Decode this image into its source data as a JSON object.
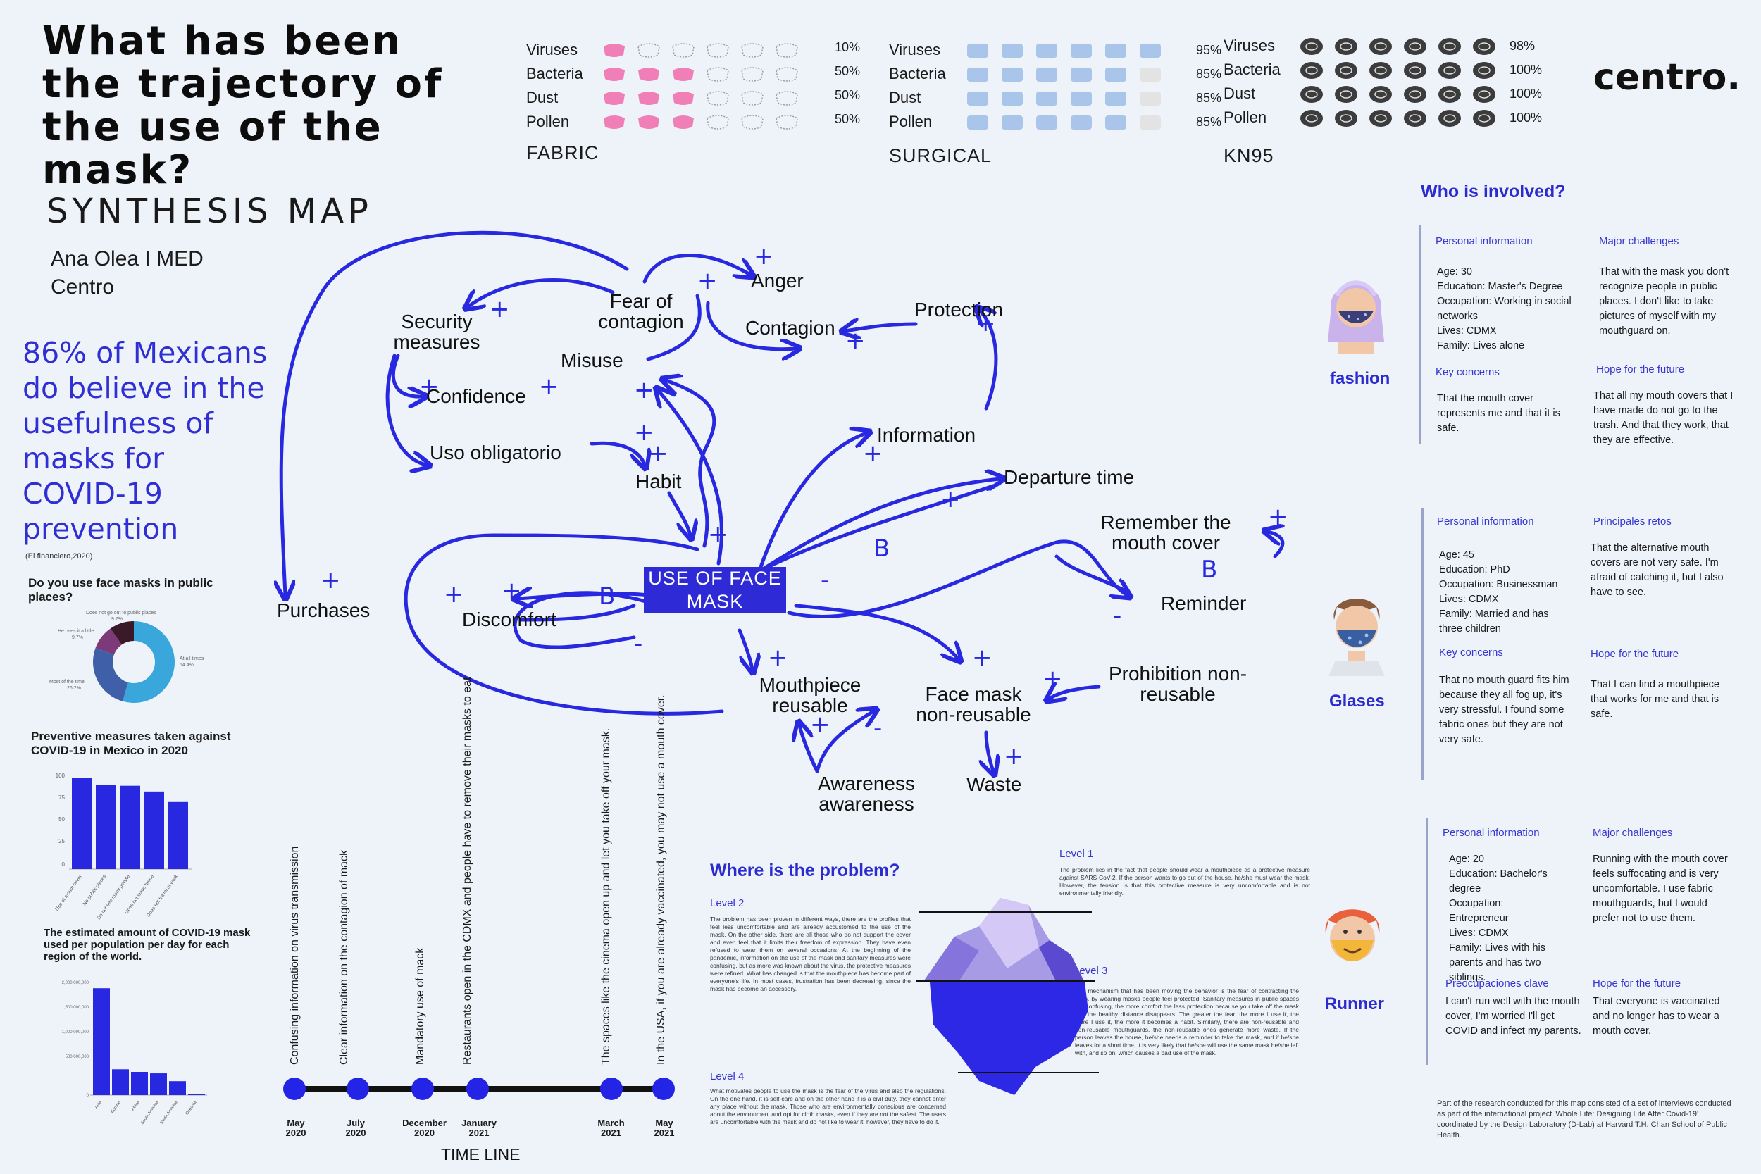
{
  "title": "What has been the trajectory of the use of the mask?",
  "brand": "centro.",
  "synthesis_title": "SYNTHESIS MAP",
  "author": {
    "name": "Ana Olea I MED",
    "org": "Centro"
  },
  "statistic": {
    "text": "86% of Mexicans do believe in the usefulness of masks for COVID-19 prevention",
    "source": "(El financiero,2020)"
  },
  "mask_types": [
    {
      "name": "FABRIC",
      "color": "#f07fb8",
      "rows": [
        {
          "label": "Viruses",
          "pct": "10%",
          "level": 0.1
        },
        {
          "label": "Bacteria",
          "pct": "50%",
          "level": 0.5
        },
        {
          "label": "Dust",
          "pct": "50%",
          "level": 0.5
        },
        {
          "label": "Pollen",
          "pct": "50%",
          "level": 0.5
        }
      ]
    },
    {
      "name": "SURGICAL",
      "color": "#a9c6ea",
      "rows": [
        {
          "label": "Viruses",
          "pct": "95%",
          "level": 0.95
        },
        {
          "label": "Bacteria",
          "pct": "85%",
          "level": 0.85
        },
        {
          "label": "Dust",
          "pct": "85%",
          "level": 0.85
        },
        {
          "label": "Pollen",
          "pct": "85%",
          "level": 0.85
        }
      ]
    },
    {
      "name": "KN95",
      "color": "#3c3c3c",
      "rows": [
        {
          "label": "Viruses",
          "pct": "98%",
          "level": 0.98
        },
        {
          "label": "Bacteria",
          "pct": "100%",
          "level": 1
        },
        {
          "label": "Dust",
          "pct": "100%",
          "level": 1
        },
        {
          "label": "Pollen",
          "pct": "100%",
          "level": 1
        }
      ]
    }
  ],
  "donut": {
    "question": "Do you use face masks in public places?",
    "slices": [
      {
        "label": "At all times",
        "pct": "54.4%",
        "value": 54.4,
        "color": "#39a6dc"
      },
      {
        "label": "Most of the time",
        "pct": "26.2%",
        "value": 26.2,
        "color": "#3f5fa8"
      },
      {
        "label": "He uses it a little",
        "pct": "9.7%",
        "value": 9.7,
        "color": "#7c3a78"
      },
      {
        "label": "Does not go out to public places",
        "pct": "9.7%",
        "value": 9.7,
        "color": "#3a1a28"
      }
    ]
  },
  "chart_data": [
    {
      "type": "bar",
      "title": "Preventive measures taken against COVID-19 in Mexico in 2020",
      "categories": [
        "Use of mouth cover",
        "No public places",
        "Do not see many people",
        "Does not leave home",
        "Does not travel at work"
      ],
      "values": [
        95,
        88,
        87,
        81,
        70
      ],
      "ylim": [
        0,
        100
      ],
      "ytick_labels": [
        "100",
        "75",
        "50",
        "25",
        "0"
      ],
      "color": "#2828e0"
    },
    {
      "type": "bar",
      "title": "The estimated amount of COVID-19 mask used per population per day for each region of the world.",
      "categories": [
        "Asia",
        "Europe",
        "Africa",
        "South America",
        "North America",
        "Oceania"
      ],
      "values": [
        1840000000,
        445000000,
        400000000,
        375000000,
        240000000,
        15000000
      ],
      "ylim": [
        0,
        2000000000
      ],
      "ytick_labels": [
        "2,000,000,000",
        "1,500,000,000",
        "1,000,000,000",
        "500,000,000",
        "0"
      ],
      "color": "#2828e0"
    }
  ],
  "map": {
    "center": "USE OF FACE MASK",
    "nodes": {
      "fear": "Fear of contagion",
      "anger": "Anger",
      "contagion": "Contagion",
      "protection": "Protection",
      "security": "Security measures",
      "misuse": "Misuse",
      "confidence": "Confidence",
      "uso": "Uso obligatorio",
      "habit": "Habit",
      "information": "Information",
      "departure": "Departure time",
      "remember": "Remember the mouth cover",
      "reminder": "Reminder",
      "purchases": "Purchases",
      "discomfort": "Discomfort",
      "mouthpiece": "Mouthpiece reusable",
      "facemask_nr": "Face mask non-reusable",
      "prohibition": "Prohibition non-reusable",
      "awareness": "Awareness awareness",
      "waste": "Waste"
    }
  },
  "who": {
    "title": "Who is involved?",
    "personas": [
      {
        "name": "fashion",
        "left_h": "Personal information",
        "left_t": "Age: 30\nEducation: Master's Degree\nOccupation: Working in social networks\nLives: CDMX\nFamily: Lives alone",
        "right_h": "Major challenges",
        "right_t": "That with the mask you don't recognize people in public places. I don't like to take pictures of myself with my mouthguard on.",
        "left_h2": "Key concerns",
        "left_t2": "That the mouth cover represents me and that it is safe.",
        "right_h2": "Hope for the future",
        "right_t2": "That all my mouth covers that I have made do not go to the trash. And that they work, that they are effective."
      },
      {
        "name": "Glases",
        "left_h": "Personal information",
        "left_t": "Age: 45\nEducation: PhD\nOccupation: Businessman\nLives: CDMX\nFamily: Married and has three children",
        "right_h": "Principales retos",
        "right_t": "That the alternative mouth covers are not very safe. I'm afraid of catching it, but I also have to see.",
        "left_h2": "Key concerns",
        "left_t2": "That no mouth guard fits him because they all fog up, it's very stressful. I found some fabric ones but they are not very safe.",
        "right_h2": "Hope for the future",
        "right_t2": "That I can find a mouthpiece that works for me and that is safe."
      },
      {
        "name": "Runner",
        "left_h": "Personal information",
        "left_t": "Age: 20\nEducation:  Bachelor's degree\nOccupation: Entrepreneur\nLives: CDMX\nFamily: Lives with his parents and has two siblings.",
        "right_h": "Major challenges",
        "right_t": "Running with the mouth cover feels suffocating and is very uncomfortable. I use fabric mouthguards, but I would prefer not to use them.",
        "left_h2": "Preocupaciones clave",
        "left_t2": "I can't run well with the mouth cover, I'm worried I'll get COVID and infect my parents.",
        "right_h2": "Hope for the future",
        "right_t2": "That everyone is vaccinated and no longer has to wear a mouth cover."
      }
    ],
    "footnote": "Part of the research conducted for this map consisted of a set of interviews conducted as part of the international project 'Whole Life: Designing Life After Covid-19' coordinated by the Design Laboratory (D-Lab) at Harvard T.H. Chan School of Public Health."
  },
  "problem": {
    "title": "Where is the problem?",
    "level1_h": "Level 1",
    "level1": "The problem lies in the fact that people should wear a mouthpiece as a protective measure against SARS-CoV-2. If the person wants to go out of the house, he/she must wear the mask. However, the tension is that this protective measure is very uncomfortable and is not environmentally friendly.",
    "level2_h": "Level 2",
    "level2": "The problem has been proven in different ways, there are the profiles that feel less uncomfortable and are already accustomed to the use of the mask. On the other side, there are all those who do not support the cover and even feel that it limits their freedom of expression. They have even refused to wear them on several occasions. At the beginning of the pandemic, information on the use of the mask and sanitary measures were confusing, but as more was known about the virus, the protective measures were refined. What has changed is that the mouthpiece has become part of everyone's life. In most cases, frustration has been decreasing, since the mask has become an accessory.",
    "level3_h": "Level 3",
    "level3": "The mechanism that has been moving the behavior is the fear of contracting the virus, by wearing masks people feel protected. Sanitary measures in public spaces are confusing, the more comfort the less protection because you take off the mask and the healthy distance disappears. The greater the fear, the more I use it, the more I use it, the more it becomes a habit. Similarly, there are non-reusable and non-reusable mouthguards, the non-reusable ones generate more waste. If the person leaves the house, he/she needs a reminder to take the mask, and if he/she leaves for a short time, it is very likely that he/she will use the same mask he/she left with, and so on, which causes a bad use of the mask.",
    "level4_h": "Level 4",
    "level4": "What motivates people to use the mask is the fear of the virus and also the regulations. On the one hand, it is self-care and on the other hand it is a civil duty, they cannot enter any place without the mask. Those who are environmentally conscious are concerned about the environment and opt for cloth masks, even if they are not the safest. The users are uncomfortable with the mask and do not like to wear it, however, they have to do it."
  },
  "timeline": {
    "label": "TIME LINE",
    "events": [
      {
        "text": "Confusing information on virus transmission",
        "date": "May 2020"
      },
      {
        "text": "Clear information on the contagion of mack",
        "date": "July 2020"
      },
      {
        "text": "Mandatory use of mack",
        "date": "December 2020"
      },
      {
        "text": "Restaurants open in the CDMX and people have to remove their masks to eat",
        "date": "January 2021"
      },
      {
        "text": "The spaces like the cinema open up and let you take off your mask.",
        "date": "March 2021"
      },
      {
        "text": "In the USA, if you are already vaccinated, you may not use a mouth cover.",
        "date": "May 2021"
      }
    ]
  }
}
